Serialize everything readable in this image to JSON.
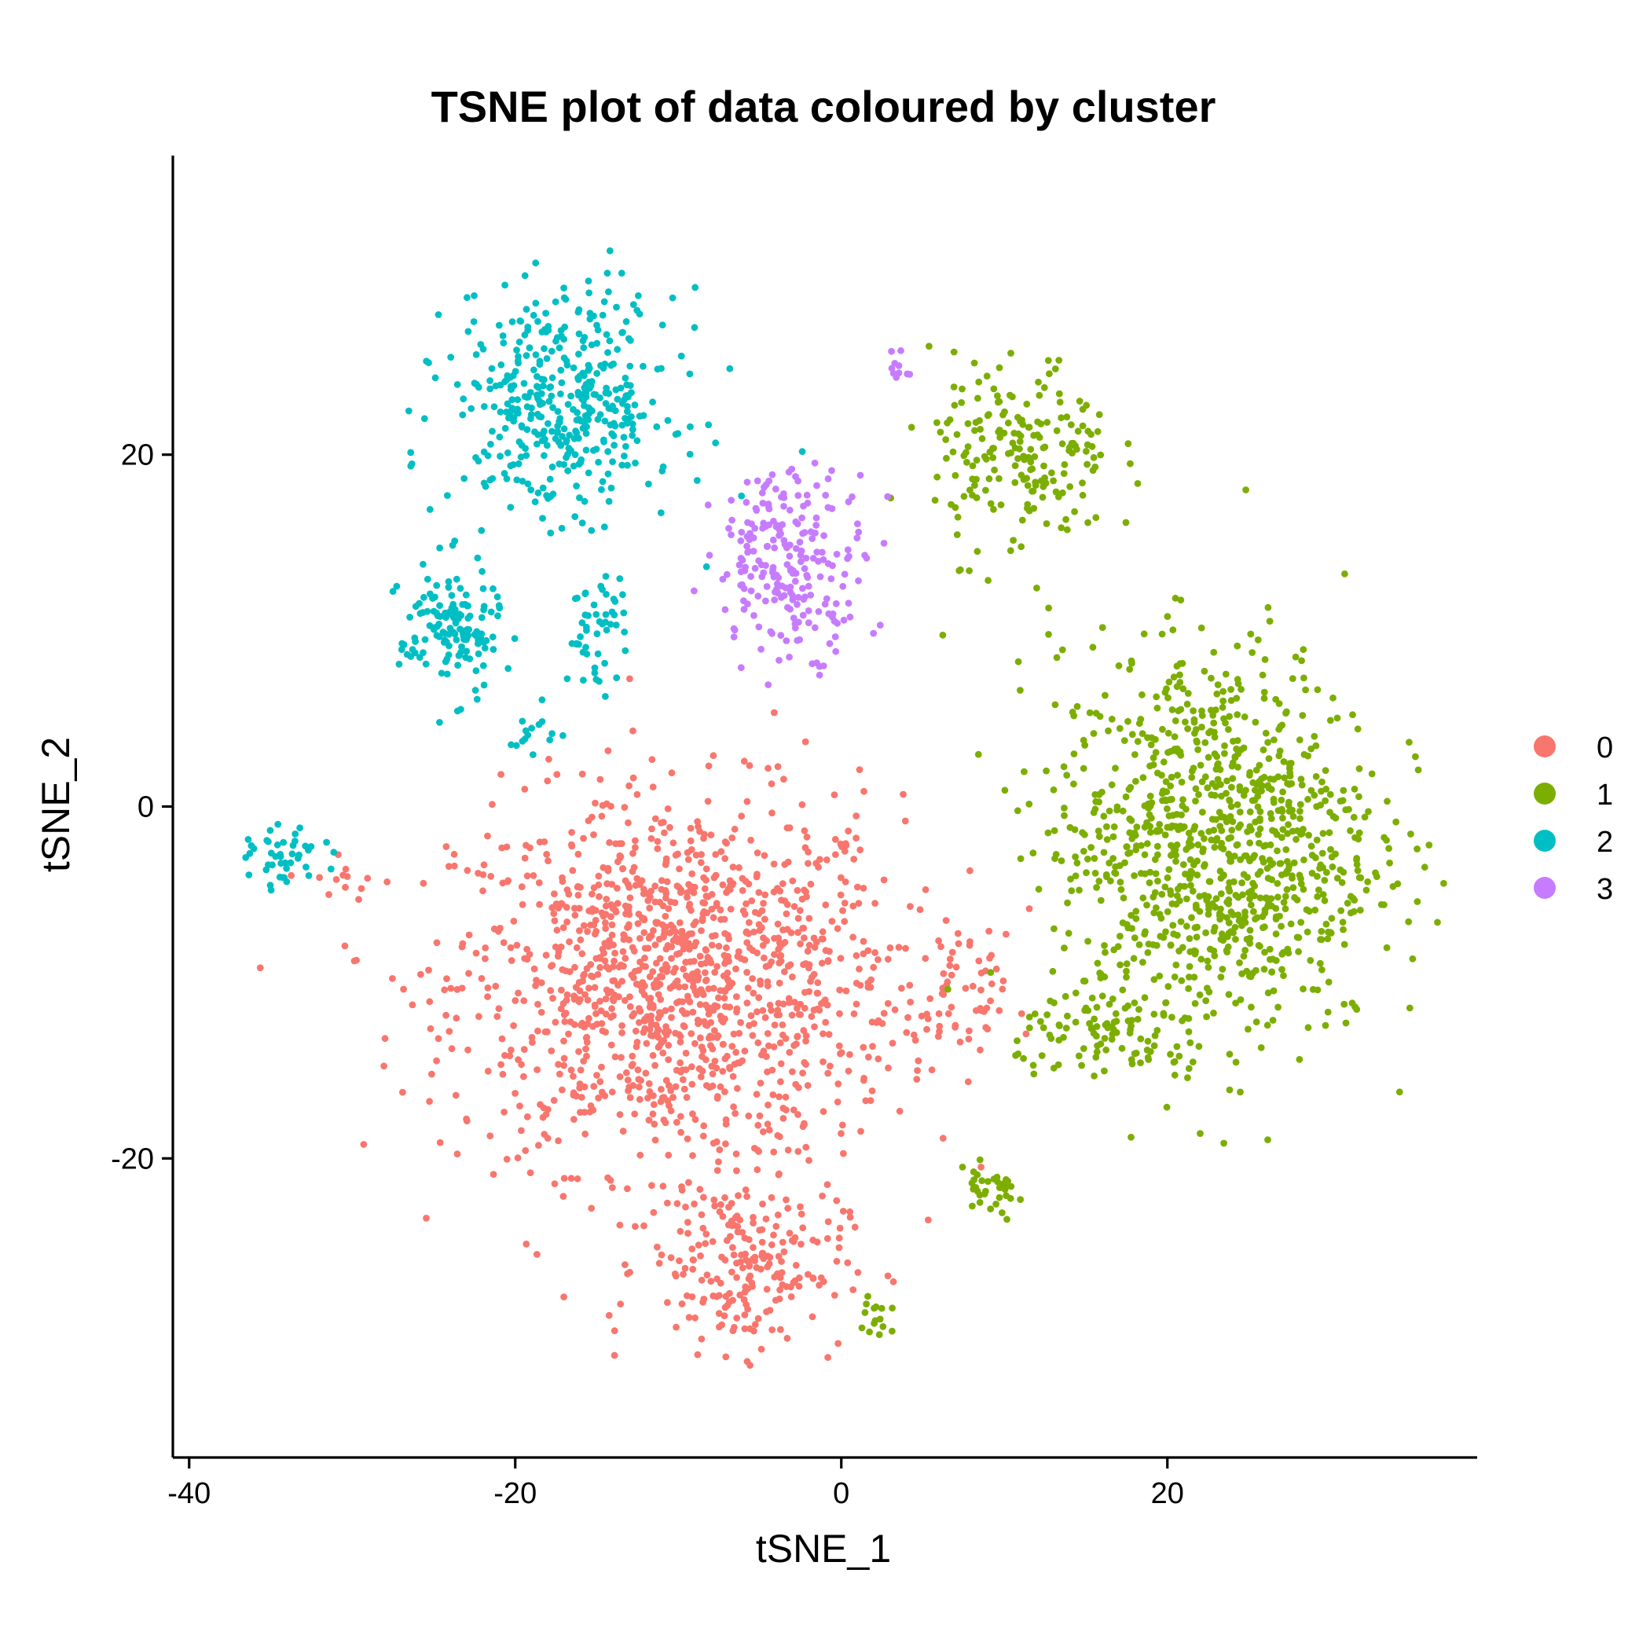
{
  "chart_data": {
    "type": "scatter",
    "title": "TSNE plot of data coloured by cluster",
    "xlabel": "tSNE_1",
    "ylabel": "tSNE_2",
    "xlim": [
      -41,
      39
    ],
    "ylim": [
      -37,
      37
    ],
    "xticks": [
      -40,
      -20,
      0,
      20
    ],
    "yticks": [
      -20,
      0,
      20
    ],
    "grid": false,
    "legend_position": "right",
    "series": [
      {
        "name": "0",
        "color": "#F8766D",
        "clusters": [
          {
            "center": [
              -10,
              -10
            ],
            "spread": [
              11,
              8.5
            ],
            "n": 1300
          },
          {
            "center": [
              -6,
              -26
            ],
            "spread": [
              5,
              4
            ],
            "n": 220
          },
          {
            "center": [
              7,
              -11
            ],
            "spread": [
              2.5,
              3
            ],
            "n": 60
          },
          {
            "center": [
              -31,
              -4
            ],
            "spread": [
              1.5,
              1.5
            ],
            "n": 10
          }
        ]
      },
      {
        "name": "1",
        "color": "#7CAE00",
        "clusters": [
          {
            "center": [
              23,
              -2
            ],
            "spread": [
              8,
              9
            ],
            "n": 1000
          },
          {
            "center": [
              11,
              20
            ],
            "spread": [
              4.5,
              4.5
            ],
            "n": 200
          },
          {
            "center": [
              17,
              -13
            ],
            "spread": [
              5,
              2
            ],
            "n": 90
          },
          {
            "center": [
              9,
              -22
            ],
            "spread": [
              2,
              1.2
            ],
            "n": 35
          },
          {
            "center": [
              2,
              -29
            ],
            "spread": [
              0.8,
              2
            ],
            "n": 15
          }
        ]
      },
      {
        "name": "2",
        "color": "#00BFC4",
        "clusters": [
          {
            "center": [
              -17,
              23
            ],
            "spread": [
              5.5,
              5
            ],
            "n": 420
          },
          {
            "center": [
              -24,
              10
            ],
            "spread": [
              2.5,
              3
            ],
            "n": 140
          },
          {
            "center": [
              -15,
              10
            ],
            "spread": [
              1.5,
              2.5
            ],
            "n": 50
          },
          {
            "center": [
              -34,
              -3
            ],
            "spread": [
              1.8,
              1.3
            ],
            "n": 45
          },
          {
            "center": [
              -19,
              4
            ],
            "spread": [
              1.5,
              1.5
            ],
            "n": 15
          }
        ]
      },
      {
        "name": "3",
        "color": "#C77CFF",
        "clusters": [
          {
            "center": [
              -3,
              14
            ],
            "spread": [
              3.8,
              4.2
            ],
            "n": 230
          },
          {
            "center": [
              3.5,
              25
            ],
            "spread": [
              0.5,
              0.8
            ],
            "n": 10
          }
        ]
      }
    ]
  }
}
